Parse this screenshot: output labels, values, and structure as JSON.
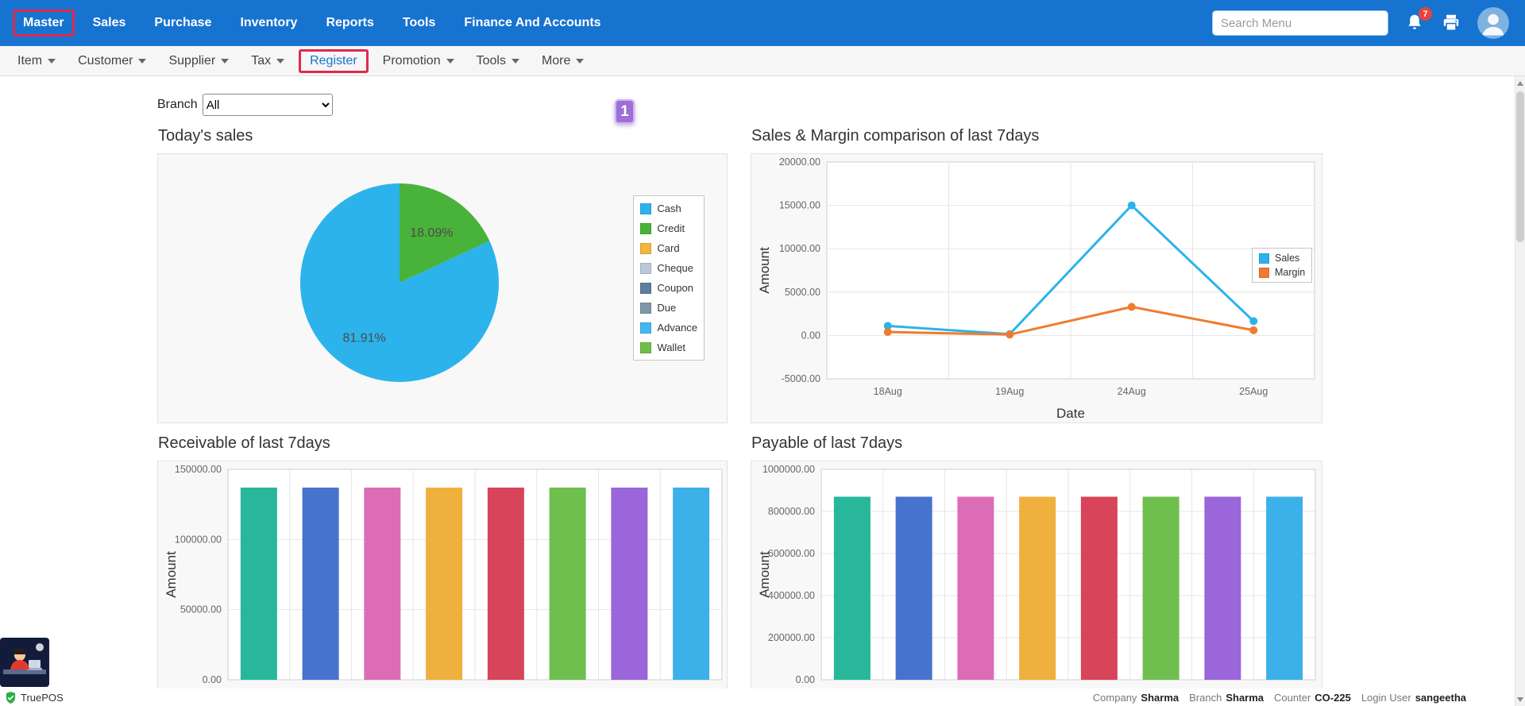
{
  "theme": {
    "brand_blue": "#1673d0",
    "annotation_red": "#e1294b",
    "annotation_purple": "#9e6fd8",
    "notification_badge_red": "#e8433a"
  },
  "top_nav": {
    "items": [
      {
        "label": "Master",
        "annotated": true
      },
      {
        "label": "Sales"
      },
      {
        "label": "Purchase"
      },
      {
        "label": "Inventory"
      },
      {
        "label": "Reports"
      },
      {
        "label": "Tools"
      },
      {
        "label": "Finance And Accounts"
      }
    ],
    "search_placeholder": "Search Menu",
    "notification_count": "7"
  },
  "sub_nav": {
    "items": [
      {
        "label": "Item",
        "has_dropdown": true
      },
      {
        "label": "Customer",
        "has_dropdown": true
      },
      {
        "label": "Supplier",
        "has_dropdown": true
      },
      {
        "label": "Tax",
        "has_dropdown": true
      },
      {
        "label": "Register",
        "has_dropdown": false,
        "active": true,
        "annotated": true
      },
      {
        "label": "Promotion",
        "has_dropdown": true
      },
      {
        "label": "Tools",
        "has_dropdown": true
      },
      {
        "label": "More",
        "has_dropdown": true
      }
    ]
  },
  "filters": {
    "branch_label": "Branch",
    "branch_value": "All"
  },
  "annotation_step": "1",
  "chart_data": [
    {
      "id": "todays-sales",
      "type": "pie",
      "title": "Today's sales",
      "slices": [
        {
          "label": "Credit",
          "value": 18.09,
          "display": "18.09%",
          "color": "#49b23a",
          "label_r": 0.6
        },
        {
          "label": "Cash",
          "value": 81.91,
          "display": "81.91%",
          "color": "#2cb3ec",
          "label_r": 0.66
        }
      ],
      "legend": [
        {
          "label": "Cash",
          "color": "#2cb3ec"
        },
        {
          "label": "Credit",
          "color": "#49b23a"
        },
        {
          "label": "Card",
          "color": "#f2b63a"
        },
        {
          "label": "Cheque",
          "color": "#bac9d8"
        },
        {
          "label": "Coupon",
          "color": "#5d7e9e"
        },
        {
          "label": "Due",
          "color": "#7e98a6"
        },
        {
          "label": "Advance",
          "color": "#45b6ee"
        },
        {
          "label": "Wallet",
          "color": "#6dbf47"
        }
      ],
      "legend_position": "right"
    },
    {
      "id": "sales-margin",
      "type": "line",
      "title": "Sales & Margin comparison of last 7days",
      "categories": [
        "18Aug",
        "19Aug",
        "24Aug",
        "25Aug"
      ],
      "series": [
        {
          "name": "Sales",
          "color": "#2cb3ec",
          "values": [
            1100,
            150,
            15000,
            1650
          ]
        },
        {
          "name": "Margin",
          "color": "#ee7c2e",
          "values": [
            400,
            100,
            3300,
            600
          ]
        }
      ],
      "xlabel": "Date",
      "ylabel": "Amount",
      "ylim": [
        -5000,
        20000
      ],
      "ytick_step": 5000,
      "grid": true,
      "legend_position": "right"
    },
    {
      "id": "receivable",
      "type": "bar",
      "title": "Receivable of last 7days",
      "values": [
        137000,
        137000,
        137000,
        137000,
        137000,
        137000,
        137000,
        137000
      ],
      "bar_colors": [
        "#28b79a",
        "#4673cc",
        "#dd6cb7",
        "#f0b03e",
        "#d8445a",
        "#6fbf4e",
        "#9a66d9",
        "#3cb0e8"
      ],
      "ylabel": "Amount",
      "ylim": [
        0,
        150000
      ],
      "ytick_step": 50000,
      "grid": true
    },
    {
      "id": "payable",
      "type": "bar",
      "title": "Payable of last 7days",
      "values": [
        870000,
        870000,
        870000,
        870000,
        870000,
        870000,
        870000,
        870000
      ],
      "bar_colors": [
        "#28b79a",
        "#4673cc",
        "#dd6cb7",
        "#f0b03e",
        "#d8445a",
        "#6fbf4e",
        "#9a66d9",
        "#3cb0e8"
      ],
      "ylabel": "Amount",
      "ylim": [
        0,
        1000000
      ],
      "ytick_step": 200000,
      "grid": true
    }
  ],
  "status_bar": {
    "app_name": "TruePOS",
    "items": [
      {
        "label": "Company",
        "value": "Sharma"
      },
      {
        "label": "Branch",
        "value": "Sharma"
      },
      {
        "label": "Counter",
        "value": "CO-225"
      },
      {
        "label": "Login User",
        "value": "sangeetha"
      }
    ]
  }
}
